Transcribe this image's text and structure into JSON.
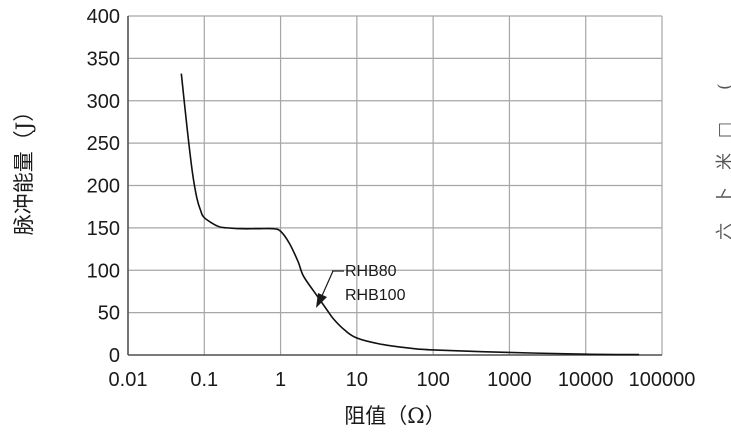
{
  "chart_data": {
    "type": "line",
    "xscale": "log",
    "ylabel": "脉冲能量（J）",
    "xlabel": "阻值（Ω）",
    "xlim": [
      0.01,
      100000
    ],
    "ylim": [
      0,
      400
    ],
    "grid": true,
    "x_ticks": [
      "0.01",
      "0.1",
      "1",
      "10",
      "100",
      "1000",
      "10000",
      "100000"
    ],
    "y_ticks": [
      "0",
      "50",
      "100",
      "150",
      "200",
      "250",
      "300",
      "350",
      "400"
    ],
    "annotation": {
      "lines": [
        "RHB80",
        "RHB100"
      ]
    },
    "series": [
      {
        "name": "RHB80 / RHB100",
        "x": [
          0.05,
          0.06,
          0.07,
          0.08,
          0.09,
          0.1,
          0.15,
          0.2,
          0.3,
          0.5,
          0.8,
          1,
          1.3,
          1.7,
          2,
          3,
          4,
          5,
          7,
          10,
          20,
          50,
          100,
          1000,
          10000,
          50000
        ],
        "y": [
          332,
          265,
          215,
          185,
          170,
          162,
          152,
          150,
          149,
          149,
          149,
          146,
          132,
          110,
          93,
          70,
          54,
          42,
          29,
          20,
          13,
          8,
          6,
          3,
          1,
          0.5
        ]
      }
    ]
  },
  "edge_glyphs": [
    "(",
    "□",
    "米",
    "卜",
    "六"
  ]
}
